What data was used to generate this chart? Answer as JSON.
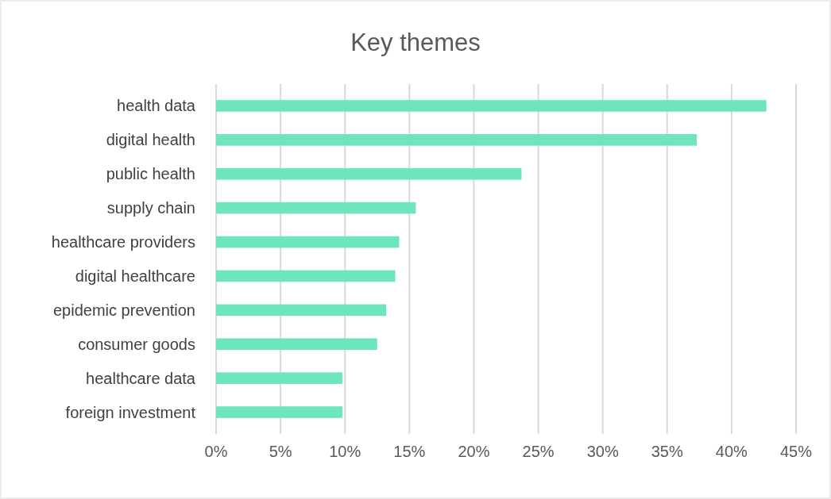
{
  "chart_data": {
    "type": "bar",
    "orientation": "horizontal",
    "title": "Key themes",
    "categories": [
      "health data",
      "digital health",
      "public health",
      "supply chain",
      "healthcare providers",
      "digital healthcare",
      "epidemic prevention",
      "consumer goods",
      "healthcare data",
      "foreign investment"
    ],
    "values": [
      42.7,
      37.3,
      23.7,
      15.5,
      14.2,
      13.9,
      13.2,
      12.5,
      9.8,
      9.8
    ],
    "color": "#6ee6bd",
    "xlim": [
      0,
      45
    ],
    "xticks": [
      {
        "value": 0,
        "label": "0%"
      },
      {
        "value": 5,
        "label": "5%"
      },
      {
        "value": 10,
        "label": "10%"
      },
      {
        "value": 15,
        "label": "15%"
      },
      {
        "value": 20,
        "label": "20%"
      },
      {
        "value": 25,
        "label": "25%"
      },
      {
        "value": 30,
        "label": "30%"
      },
      {
        "value": 35,
        "label": "35%"
      },
      {
        "value": 40,
        "label": "40%"
      },
      {
        "value": 45,
        "label": "45%"
      }
    ],
    "grid": "x"
  }
}
